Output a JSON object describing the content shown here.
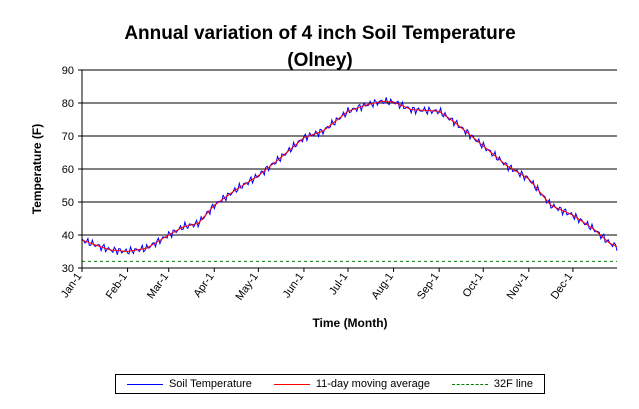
{
  "chart_data": {
    "type": "line",
    "title": "Annual variation of 4 inch Soil Temperature",
    "subtitle": "(Olney)",
    "xlabel": "Time (Month)",
    "ylabel": "Temperature (F)",
    "ylim": [
      30,
      90
    ],
    "y_ticks": [
      "30",
      "40",
      "50",
      "60",
      "70",
      "80",
      "90"
    ],
    "x_tick_labels": [
      "Jan-1",
      "Feb-1",
      "Mar-1",
      "Apr-1",
      "May-1",
      "Jun-1",
      "Jul-1",
      "Aug-1",
      "Sep-1",
      "Oct-1",
      "Nov-1",
      "Dec-1"
    ],
    "x_tick_days": [
      1,
      32,
      60,
      91,
      121,
      152,
      182,
      213,
      244,
      274,
      305,
      335
    ],
    "x_range_days": [
      1,
      365
    ],
    "grid": "horizontal",
    "legend_position": "bottom",
    "key_points": {
      "days": [
        1,
        10,
        20,
        32,
        45,
        60,
        70,
        80,
        91,
        105,
        121,
        135,
        152,
        165,
        182,
        195,
        205,
        213,
        225,
        244,
        255,
        274,
        290,
        305,
        320,
        335,
        350,
        360,
        365
      ],
      "temps": [
        38.5,
        37,
        35.5,
        35,
        36,
        40,
        42.5,
        43.5,
        49,
        53.5,
        58,
        63,
        69.5,
        71.5,
        77.5,
        79.5,
        80.5,
        80.3,
        78,
        77.5,
        74,
        67,
        61,
        57,
        49,
        46,
        41.5,
        37.5,
        36.5
      ]
    },
    "series": [
      {
        "name": "Soil Temperature",
        "color": "#0000ff",
        "style": "solid",
        "noisy": true
      },
      {
        "name": "11-day moving average",
        "color": "#ff0000",
        "style": "solid",
        "noisy": false
      },
      {
        "name": "32F line",
        "color": "#008000",
        "style": "dashed",
        "constant": 32
      }
    ]
  }
}
